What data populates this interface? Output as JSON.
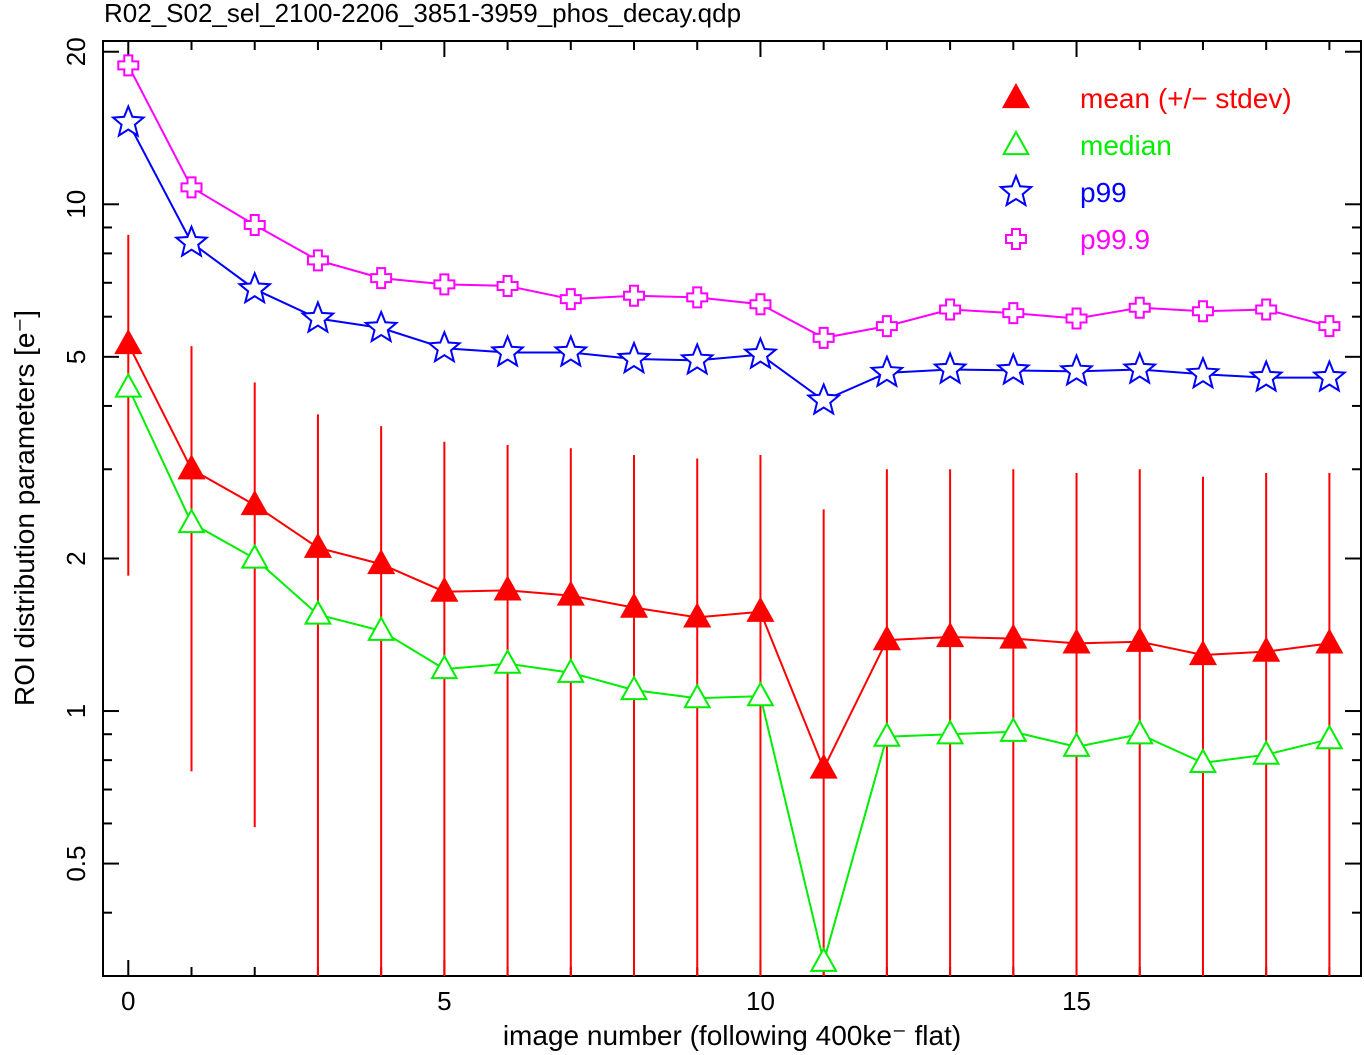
{
  "chart_data": {
    "type": "line",
    "title": "R02_S02_sel_2100-2206_3851-3959_phos_decay.qdp",
    "xlabel": "image number (following 400ke⁻ flat)",
    "ylabel": "ROI distribution parameters [e⁻]",
    "xlim": [
      -0.4,
      19.5
    ],
    "ylim": [
      0.3,
      21
    ],
    "yscale": "log",
    "grid": false,
    "legend_position": "top-right",
    "x_ticks": [
      0,
      5,
      10,
      15
    ],
    "x_tick_labels": [
      "0",
      "5",
      "10",
      "15"
    ],
    "y_ticks": [
      0.5,
      1,
      2,
      5,
      10,
      20
    ],
    "y_tick_labels": [
      "0.5",
      "1",
      "2",
      "5",
      "10",
      "20"
    ],
    "x": [
      0,
      1,
      2,
      3,
      4,
      5,
      6,
      7,
      8,
      9,
      10,
      11,
      12,
      13,
      14,
      15,
      16,
      17,
      18,
      19
    ],
    "series": [
      {
        "name": "mean (+/− stdev)",
        "color": "#ff0000",
        "marker": "filled-triangle",
        "values": [
          5.3,
          3.0,
          2.55,
          2.1,
          1.95,
          1.72,
          1.73,
          1.69,
          1.6,
          1.53,
          1.57,
          0.77,
          1.38,
          1.4,
          1.39,
          1.36,
          1.37,
          1.29,
          1.31,
          1.36
        ],
        "error_low": [
          1.85,
          0.76,
          0.59,
          0.3,
          0.2,
          0.2,
          0.2,
          0.2,
          0.2,
          0.2,
          0.2,
          0.2,
          0.2,
          0.2,
          0.2,
          0.2,
          0.2,
          0.2,
          0.2,
          0.2
        ],
        "error_high": [
          8.7,
          5.25,
          4.45,
          3.85,
          3.65,
          3.4,
          3.35,
          3.3,
          3.2,
          3.15,
          3.2,
          2.5,
          3.0,
          3.0,
          3.0,
          2.95,
          3.0,
          2.9,
          2.95,
          2.95
        ]
      },
      {
        "name": "median",
        "color": "#00ee00",
        "marker": "open-triangle",
        "values": [
          4.35,
          2.35,
          2.0,
          1.55,
          1.44,
          1.21,
          1.24,
          1.19,
          1.1,
          1.06,
          1.07,
          0.32,
          0.89,
          0.9,
          0.91,
          0.85,
          0.9,
          0.79,
          0.82,
          0.88
        ]
      },
      {
        "name": "p99",
        "color": "#0000ff",
        "marker": "open-star",
        "values": [
          14.5,
          8.4,
          6.8,
          5.95,
          5.7,
          5.2,
          5.1,
          5.1,
          4.95,
          4.92,
          5.05,
          4.1,
          4.65,
          4.72,
          4.7,
          4.68,
          4.72,
          4.62,
          4.55,
          4.55
        ]
      },
      {
        "name": "p99.9",
        "color": "#ff00ff",
        "marker": "open-cross",
        "values": [
          18.8,
          10.8,
          9.1,
          7.75,
          7.15,
          6.95,
          6.9,
          6.5,
          6.6,
          6.55,
          6.35,
          5.45,
          5.75,
          6.2,
          6.1,
          5.95,
          6.25,
          6.15,
          6.2,
          5.75
        ]
      }
    ]
  }
}
